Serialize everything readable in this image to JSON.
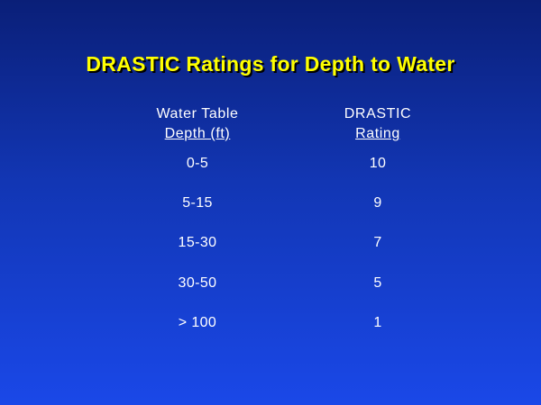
{
  "title": "DRASTIC Ratings for Depth to Water",
  "table": {
    "headers": {
      "depth": [
        "Water Table",
        "Depth (ft)"
      ],
      "rating": [
        "DRASTIC",
        "Rating"
      ]
    },
    "rows": [
      {
        "depth": "0-5",
        "rating": "10"
      },
      {
        "depth": "5-15",
        "rating": "9"
      },
      {
        "depth": "15-30",
        "rating": "7"
      },
      {
        "depth": "30-50",
        "rating": "5"
      },
      {
        "depth": "> 100",
        "rating": "1"
      }
    ]
  },
  "colors": {
    "title": "#ffff00",
    "text": "#ffffff",
    "background_top": "#0a1f78",
    "background_bottom": "#1a48e8"
  }
}
